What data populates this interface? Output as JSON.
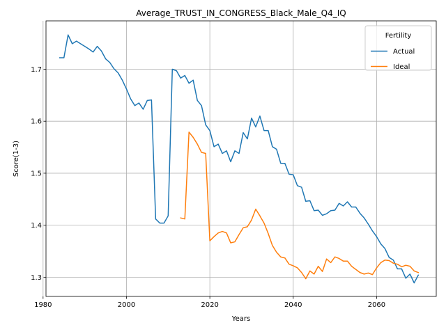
{
  "chart_data": {
    "type": "line",
    "title": "Average_TRUST_IN_CONGRESS_Black_Male_Q4_IQ",
    "xlabel": "Years",
    "ylabel": "Score(1-3)",
    "xlim": [
      1980.7,
      2074.3
    ],
    "ylim": [
      1.263,
      1.793
    ],
    "xticks": [
      1980,
      2000,
      2020,
      2040,
      2060
    ],
    "yticks": [
      1.3,
      1.4,
      1.5,
      1.6,
      1.7
    ],
    "xtick_labels": [
      "1980",
      "2000",
      "2020",
      "2040",
      "2060"
    ],
    "ytick_labels": [
      "1.3",
      "1.4",
      "1.5",
      "1.6",
      "1.7"
    ],
    "grid": true,
    "legend": {
      "title": "Fertility",
      "position": "top-right"
    },
    "series": [
      {
        "name": "Actual",
        "color": "#1f77b4",
        "x": [
          1984,
          1985,
          1986,
          1987,
          1988,
          1989,
          1990,
          1991,
          1992,
          1993,
          1994,
          1995,
          1996,
          1997,
          1998,
          1999,
          2000,
          2001,
          2002,
          2003,
          2004,
          2005,
          2006,
          2007,
          2008,
          2009,
          2010,
          2011,
          2012,
          2013,
          2014,
          2015,
          2016,
          2017,
          2018,
          2019,
          2020,
          2021,
          2022,
          2023,
          2024,
          2025,
          2026,
          2027,
          2028,
          2029,
          2030,
          2031,
          2032,
          2033,
          2034,
          2035,
          2036,
          2037,
          2038,
          2039,
          2040,
          2041,
          2042,
          2043,
          2044,
          2045,
          2046,
          2047,
          2048,
          2049,
          2050,
          2051,
          2052,
          2053,
          2054,
          2055,
          2056,
          2057,
          2058,
          2059,
          2060,
          2061,
          2062,
          2063,
          2064,
          2065,
          2066,
          2067,
          2068,
          2069,
          2070
        ],
        "y": [
          1.722,
          1.722,
          1.766,
          1.749,
          1.754,
          1.749,
          1.744,
          1.739,
          1.733,
          1.744,
          1.735,
          1.72,
          1.713,
          1.701,
          1.693,
          1.679,
          1.662,
          1.643,
          1.63,
          1.635,
          1.623,
          1.64,
          1.641,
          1.412,
          1.404,
          1.404,
          1.418,
          1.7,
          1.697,
          1.683,
          1.688,
          1.673,
          1.679,
          1.64,
          1.63,
          1.593,
          1.582,
          1.551,
          1.556,
          1.538,
          1.543,
          1.522,
          1.543,
          1.538,
          1.578,
          1.566,
          1.606,
          1.589,
          1.61,
          1.582,
          1.582,
          1.551,
          1.546,
          1.519,
          1.519,
          1.498,
          1.497,
          1.476,
          1.473,
          1.446,
          1.447,
          1.428,
          1.429,
          1.419,
          1.422,
          1.428,
          1.429,
          1.442,
          1.437,
          1.445,
          1.435,
          1.435,
          1.423,
          1.414,
          1.402,
          1.389,
          1.378,
          1.364,
          1.355,
          1.338,
          1.333,
          1.316,
          1.316,
          1.298,
          1.306,
          1.289,
          1.304
        ]
      },
      {
        "name": "Ideal",
        "color": "#ff7f0e",
        "x": [
          2013,
          2014,
          2015,
          2016,
          2017,
          2018,
          2019,
          2020,
          2021,
          2022,
          2023,
          2024,
          2025,
          2026,
          2027,
          2028,
          2029,
          2030,
          2031,
          2032,
          2033,
          2034,
          2035,
          2036,
          2037,
          2038,
          2039,
          2040,
          2041,
          2042,
          2043,
          2044,
          2045,
          2046,
          2047,
          2048,
          2049,
          2050,
          2051,
          2052,
          2053,
          2054,
          2055,
          2056,
          2057,
          2058,
          2059,
          2060,
          2061,
          2062,
          2063,
          2064,
          2065,
          2066,
          2067,
          2068,
          2069,
          2070
        ],
        "y": [
          1.414,
          1.412,
          1.579,
          1.569,
          1.556,
          1.54,
          1.538,
          1.37,
          1.378,
          1.385,
          1.388,
          1.385,
          1.366,
          1.368,
          1.382,
          1.395,
          1.397,
          1.41,
          1.431,
          1.418,
          1.404,
          1.384,
          1.361,
          1.348,
          1.339,
          1.337,
          1.325,
          1.322,
          1.318,
          1.309,
          1.297,
          1.312,
          1.306,
          1.321,
          1.311,
          1.335,
          1.328,
          1.339,
          1.336,
          1.331,
          1.331,
          1.321,
          1.315,
          1.309,
          1.306,
          1.308,
          1.305,
          1.318,
          1.328,
          1.333,
          1.332,
          1.327,
          1.325,
          1.32,
          1.323,
          1.321,
          1.312,
          1.309
        ]
      }
    ]
  }
}
